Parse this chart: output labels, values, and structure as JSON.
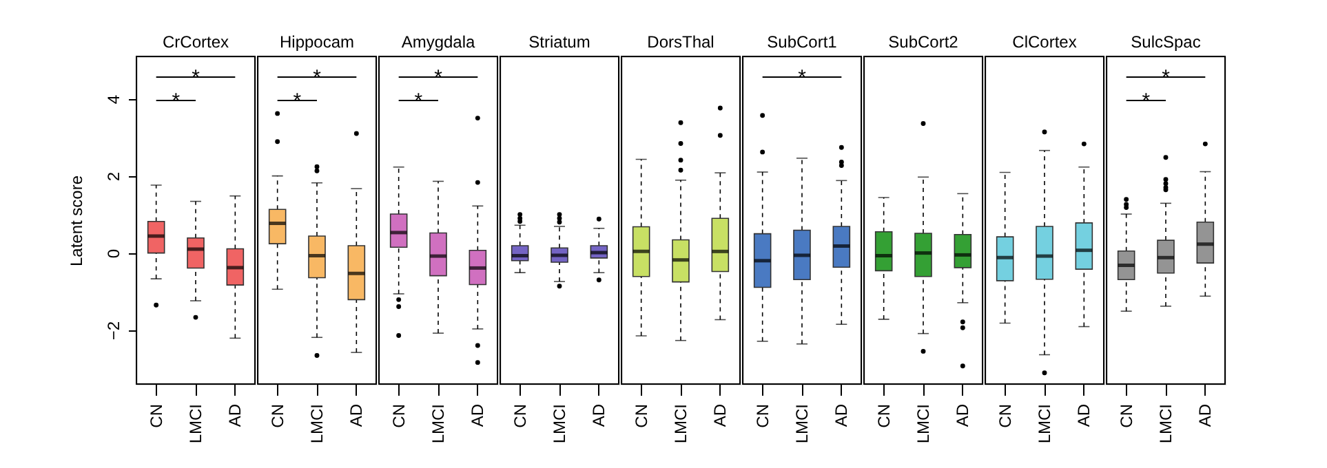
{
  "chart_data": [
    {
      "type": "box",
      "title": "CrCortex",
      "ylabel": "Latent score",
      "categories": [
        "CN",
        "LMCI",
        "AD"
      ],
      "colors": [
        "#f06464",
        "#f06464",
        "#f06464"
      ],
      "ylim": [
        -3.4,
        5.1
      ],
      "yticks": [
        -2,
        0,
        2,
        4
      ],
      "grid": false,
      "annotations": [
        "*",
        "*"
      ],
      "boxes": [
        {
          "low": -0.67,
          "q1": 0.0,
          "median": 0.44,
          "q3": 0.82,
          "high": 1.76,
          "outliers": [
            -1.35
          ]
        },
        {
          "low": -1.24,
          "q1": -0.39,
          "median": 0.1,
          "q3": 0.39,
          "high": 1.34,
          "outliers": [
            -1.67
          ]
        },
        {
          "low": -2.21,
          "q1": -0.83,
          "median": -0.38,
          "q3": 0.11,
          "high": 1.48
        }
      ]
    },
    {
      "type": "box",
      "title": "Hippocam",
      "categories": [
        "CN",
        "LMCI",
        "AD"
      ],
      "colors": [
        "#f8b864",
        "#f8b864",
        "#f8b864"
      ],
      "ylim": [
        -3.4,
        5.1
      ],
      "tick_labels": "x",
      "grid": false,
      "annotations": [
        "*",
        "*"
      ],
      "boxes": [
        {
          "low": -0.94,
          "q1": 0.24,
          "median": 0.77,
          "q3": 1.13,
          "high": 2.0,
          "outliers": [
            3.62,
            2.89
          ]
        },
        {
          "low": -2.19,
          "q1": -0.64,
          "median": -0.07,
          "q3": 0.44,
          "high": 1.82,
          "outliers": [
            2.24,
            2.13,
            -2.66
          ]
        },
        {
          "low": -2.58,
          "q1": -1.21,
          "median": -0.53,
          "q3": 0.19,
          "high": 1.67,
          "outliers": [
            3.1
          ]
        }
      ]
    },
    {
      "type": "box",
      "title": "Amygdala",
      "categories": [
        "CN",
        "LMCI",
        "AD"
      ],
      "colors": [
        "#d070c0",
        "#d070c0",
        "#d070c0"
      ],
      "ylim": [
        -3.4,
        5.1
      ],
      "tick_labels": "x",
      "grid": false,
      "annotations": [
        "*",
        "*"
      ],
      "boxes": [
        {
          "low": -1.06,
          "q1": 0.15,
          "median": 0.53,
          "q3": 1.01,
          "high": 2.23,
          "outliers": [
            -1.21,
            -1.39,
            -2.14
          ]
        },
        {
          "low": -2.08,
          "q1": -0.59,
          "median": -0.08,
          "q3": 0.52,
          "high": 1.86
        },
        {
          "low": -1.97,
          "q1": -0.82,
          "median": -0.39,
          "q3": 0.07,
          "high": 1.22,
          "outliers": [
            3.5,
            1.83,
            -2.4,
            -2.84
          ]
        }
      ]
    },
    {
      "type": "box",
      "title": "Striatum",
      "categories": [
        "CN",
        "LMCI",
        "AD"
      ],
      "colors": [
        "#7464c4",
        "#7464c4",
        "#7464c4"
      ],
      "ylim": [
        -3.4,
        5.1
      ],
      "tick_labels": "x",
      "grid": false,
      "boxes": [
        {
          "low": -0.51,
          "q1": -0.2,
          "median": -0.07,
          "q3": 0.19,
          "high": 0.72,
          "outliers": [
            1.0,
            0.9,
            0.82
          ]
        },
        {
          "low": -0.74,
          "q1": -0.24,
          "median": -0.06,
          "q3": 0.13,
          "high": 0.69,
          "outliers": [
            1.0,
            0.9,
            0.8,
            -0.86
          ]
        },
        {
          "low": -0.51,
          "q1": -0.13,
          "median": 0.01,
          "q3": 0.19,
          "high": 0.64,
          "outliers": [
            0.88,
            -0.7
          ]
        }
      ]
    },
    {
      "type": "box",
      "title": "DorsThal",
      "categories": [
        "CN",
        "LMCI",
        "AD"
      ],
      "colors": [
        "#c8e064",
        "#c8e064",
        "#c8e064"
      ],
      "ylim": [
        -3.4,
        5.1
      ],
      "tick_labels": "x",
      "grid": false,
      "boxes": [
        {
          "low": -2.15,
          "q1": -0.61,
          "median": 0.04,
          "q3": 0.68,
          "high": 2.43
        },
        {
          "low": -2.27,
          "q1": -0.75,
          "median": -0.18,
          "q3": 0.34,
          "high": 1.89,
          "outliers": [
            3.38,
            2.84,
            2.41,
            2.15
          ]
        },
        {
          "low": -1.73,
          "q1": -0.48,
          "median": 0.04,
          "q3": 0.9,
          "high": 2.08,
          "outliers": [
            3.76,
            3.05
          ]
        }
      ]
    },
    {
      "type": "box",
      "title": "SubCort1",
      "categories": [
        "CN",
        "LMCI",
        "AD"
      ],
      "colors": [
        "#4a7ac2",
        "#4a7ac2",
        "#4a7ac2"
      ],
      "ylim": [
        -3.4,
        5.1
      ],
      "tick_labels": "x",
      "grid": false,
      "annotations": [
        "*"
      ],
      "boxes": [
        {
          "low": -2.29,
          "q1": -0.89,
          "median": -0.2,
          "q3": 0.5,
          "high": 2.1,
          "outliers": [
            3.57,
            2.62
          ]
        },
        {
          "low": -2.36,
          "q1": -0.69,
          "median": -0.06,
          "q3": 0.59,
          "high": 2.46
        },
        {
          "low": -1.85,
          "q1": -0.37,
          "median": 0.18,
          "q3": 0.69,
          "high": 1.88,
          "outliers": [
            2.74,
            2.36,
            2.27
          ]
        }
      ]
    },
    {
      "type": "box",
      "title": "SubCort2",
      "categories": [
        "CN",
        "LMCI",
        "AD"
      ],
      "colors": [
        "#34a034",
        "#34a034",
        "#34a034"
      ],
      "ylim": [
        -3.4,
        5.1
      ],
      "tick_labels": "x",
      "grid": false,
      "boxes": [
        {
          "low": -1.72,
          "q1": -0.46,
          "median": -0.07,
          "q3": 0.55,
          "high": 1.44
        },
        {
          "low": -2.09,
          "q1": -0.61,
          "median": 0.0,
          "q3": 0.51,
          "high": 1.97,
          "outliers": [
            3.36,
            -2.55
          ]
        },
        {
          "low": -1.29,
          "q1": -0.38,
          "median": -0.05,
          "q3": 0.48,
          "high": 1.54,
          "outliers": [
            -1.79,
            -1.94,
            -2.93
          ]
        }
      ]
    },
    {
      "type": "box",
      "title": "ClCortex",
      "categories": [
        "CN",
        "LMCI",
        "AD"
      ],
      "colors": [
        "#74d0e0",
        "#74d0e0",
        "#74d0e0"
      ],
      "ylim": [
        -3.4,
        5.1
      ],
      "tick_labels": "x",
      "grid": false,
      "boxes": [
        {
          "low": -1.82,
          "q1": -0.72,
          "median": -0.12,
          "q3": 0.42,
          "high": 2.09
        },
        {
          "low": -2.64,
          "q1": -0.68,
          "median": -0.08,
          "q3": 0.69,
          "high": 2.66,
          "outliers": [
            3.14,
            -3.11
          ]
        },
        {
          "low": -1.91,
          "q1": -0.42,
          "median": 0.07,
          "q3": 0.78,
          "high": 2.23,
          "outliers": [
            2.83
          ]
        }
      ]
    },
    {
      "type": "box",
      "title": "SulcSpac",
      "categories": [
        "CN",
        "LMCI",
        "AD"
      ],
      "colors": [
        "#949494",
        "#949494",
        "#949494"
      ],
      "ylim": [
        -3.4,
        5.1
      ],
      "tick_labels": "x",
      "grid": false,
      "annotations": [
        "*",
        "*"
      ],
      "boxes": [
        {
          "low": -1.51,
          "q1": -0.69,
          "median": -0.32,
          "q3": 0.05,
          "high": 1.01,
          "outliers": [
            1.39,
            1.26,
            1.18
          ]
        },
        {
          "low": -1.38,
          "q1": -0.52,
          "median": -0.12,
          "q3": 0.33,
          "high": 1.29,
          "outliers": [
            2.48,
            1.91,
            1.8,
            1.7,
            1.64
          ]
        },
        {
          "low": -1.12,
          "q1": -0.26,
          "median": 0.23,
          "q3": 0.8,
          "high": 2.11,
          "outliers": [
            2.83
          ]
        }
      ]
    }
  ]
}
